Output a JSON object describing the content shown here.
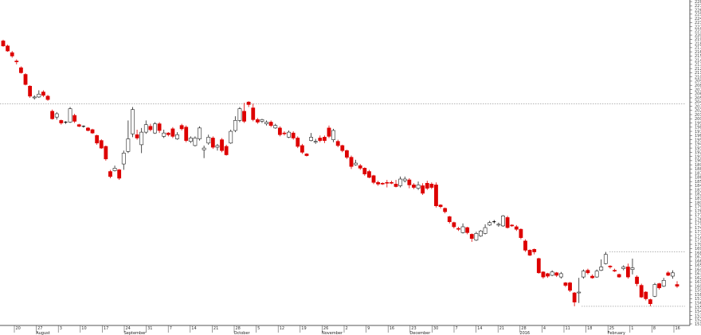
{
  "chart_data": {
    "type": "candlestick",
    "title": "",
    "xlabel": "",
    "ylabel": "",
    "ylim": [
      151,
      228
    ],
    "y_tick_step": 1,
    "grid": false,
    "legend": "none",
    "colors": {
      "bearish": "#dd0000",
      "bullish_fill": "#ffffff",
      "bullish_outline": "#222222",
      "neutral": "#000000",
      "axis": "#555555",
      "reference_line": "#888888"
    },
    "reference_lines": [
      {
        "kind": "horizontal",
        "value": 203.6
      },
      {
        "kind": "horizontal",
        "value": 168.2
      },
      {
        "kind": "horizontal",
        "value": 155.2
      }
    ],
    "date_ticks": [
      "20",
      "27",
      "3",
      "10",
      "17",
      "24",
      "31",
      "7",
      "14",
      "21",
      "28",
      "5",
      "12",
      "19",
      "26",
      "2",
      "9",
      "16",
      "23",
      "30",
      "7",
      "14",
      "21",
      "28",
      "4",
      "11",
      "18",
      "25",
      "1",
      "8",
      "16"
    ],
    "month_labels": [
      {
        "label": "August",
        "after_tick": 2
      },
      {
        "label": "September",
        "after_tick": 6
      },
      {
        "label": "October",
        "after_tick": 11
      },
      {
        "label": "November",
        "after_tick": 15
      },
      {
        "label": "December",
        "after_tick": 19
      },
      {
        "label": "2016",
        "after_tick": 24
      },
      {
        "label": "February",
        "after_tick": 28
      }
    ],
    "candles": [
      [
        218.6,
        217.4,
        218.9,
        217.2
      ],
      [
        217.4,
        216.2,
        217.7,
        216.0
      ],
      [
        215.8,
        215.0,
        216.2,
        214.6
      ],
      [
        213.8,
        213.6,
        214.2,
        213.0
      ],
      [
        212.2,
        211.0,
        212.5,
        210.8
      ],
      [
        210.6,
        208.2,
        210.9,
        208.0
      ],
      [
        207.8,
        205.4,
        208.0,
        205.0
      ],
      [
        205.0,
        205.2,
        205.6,
        204.6
      ],
      [
        205.2,
        205.9,
        206.8,
        205.0
      ],
      [
        206.4,
        205.6,
        206.8,
        205.2
      ],
      [
        205.4,
        204.6,
        205.7,
        204.3
      ],
      [
        201.8,
        200.0,
        202.2,
        199.8
      ],
      [
        200.4,
        201.2,
        201.6,
        199.8
      ],
      [
        199.6,
        199.0,
        199.8,
        198.6
      ],
      [
        199.2,
        199.1,
        199.4,
        198.8
      ],
      [
        199.2,
        202.4,
        202.8,
        199.0
      ],
      [
        200.8,
        199.4,
        201.2,
        199.0
      ],
      [
        198.6,
        198.2,
        198.8,
        198.0
      ],
      [
        198.2,
        198.1,
        198.4,
        197.9
      ],
      [
        197.8,
        197.2,
        198.0,
        197.0
      ],
      [
        197.4,
        196.6,
        197.6,
        196.4
      ],
      [
        196.0,
        194.2,
        196.2,
        193.8
      ],
      [
        194.8,
        193.0,
        195.1,
        192.8
      ],
      [
        193.4,
        190.4,
        193.6,
        190.0
      ],
      [
        187.4,
        186.2,
        187.8,
        185.8
      ],
      [
        187.6,
        188.2,
        188.8,
        187.4
      ],
      [
        187.8,
        185.8,
        188.0,
        185.4
      ],
      [
        189.2,
        191.8,
        192.4,
        187.8
      ],
      [
        192.2,
        195.2,
        199.6,
        191.8
      ],
      [
        196.4,
        202.2,
        202.8,
        195.6
      ],
      [
        196.2,
        195.4,
        197.4,
        195.0
      ],
      [
        193.8,
        196.8,
        197.8,
        191.8
      ],
      [
        196.8,
        198.6,
        199.6,
        196.4
      ],
      [
        198.2,
        197.4,
        198.8,
        197.0
      ],
      [
        196.6,
        198.8,
        199.2,
        196.4
      ],
      [
        198.8,
        197.2,
        199.2,
        196.6
      ],
      [
        195.8,
        196.6,
        197.4,
        195.4
      ],
      [
        196.6,
        196.2,
        196.8,
        195.8
      ],
      [
        197.6,
        195.8,
        198.0,
        195.4
      ],
      [
        195.2,
        196.2,
        196.8,
        195.0
      ],
      [
        198.4,
        197.6,
        198.8,
        197.2
      ],
      [
        198.0,
        194.8,
        198.4,
        194.4
      ],
      [
        194.6,
        195.4,
        195.8,
        194.2
      ],
      [
        193.6,
        195.4,
        195.8,
        193.4
      ],
      [
        195.2,
        197.8,
        198.2,
        194.8
      ],
      [
        192.6,
        193.0,
        193.6,
        190.6
      ],
      [
        194.2,
        195.6,
        196.2,
        193.8
      ],
      [
        195.4,
        193.2,
        195.8,
        192.8
      ],
      [
        193.2,
        193.6,
        194.0,
        192.4
      ],
      [
        195.0,
        192.4,
        195.4,
        192.0
      ],
      [
        193.4,
        191.4,
        193.8,
        191.2
      ],
      [
        194.2,
        197.0,
        197.4,
        194.0
      ],
      [
        197.2,
        199.6,
        200.6,
        196.8
      ],
      [
        199.6,
        202.4,
        202.8,
        199.2
      ],
      [
        201.8,
        199.4,
        203.8,
        199.0
      ],
      [
        204.0,
        203.4,
        204.2,
        202.8
      ],
      [
        202.6,
        199.8,
        203.6,
        199.4
      ],
      [
        199.8,
        199.2,
        200.2,
        198.8
      ],
      [
        199.4,
        199.8,
        200.0,
        199.0
      ],
      [
        198.8,
        199.2,
        199.6,
        198.4
      ],
      [
        199.2,
        198.4,
        199.6,
        198.0
      ],
      [
        197.8,
        198.4,
        198.8,
        197.6
      ],
      [
        197.8,
        196.2,
        198.2,
        195.8
      ],
      [
        196.6,
        196.4,
        197.0,
        196.0
      ],
      [
        195.6,
        196.8,
        197.2,
        195.4
      ],
      [
        196.6,
        195.4,
        197.0,
        195.0
      ],
      [
        195.4,
        193.4,
        195.8,
        193.0
      ],
      [
        193.6,
        192.0,
        194.0,
        191.6
      ],
      [
        191.6,
        191.2,
        191.8,
        191.0
      ],
      [
        194.8,
        195.6,
        196.6,
        194.6
      ],
      [
        194.4,
        194.6,
        195.2,
        194.0
      ],
      [
        195.4,
        194.8,
        196.0,
        194.4
      ],
      [
        195.6,
        194.8,
        196.0,
        194.2
      ],
      [
        197.8,
        195.8,
        198.4,
        195.4
      ],
      [
        195.0,
        197.2,
        197.6,
        194.4
      ],
      [
        194.6,
        193.6,
        195.0,
        193.2
      ],
      [
        193.6,
        192.4,
        193.8,
        192.0
      ],
      [
        192.4,
        190.8,
        192.6,
        190.4
      ],
      [
        190.8,
        188.6,
        191.2,
        188.0
      ],
      [
        189.0,
        189.4,
        190.2,
        188.8
      ],
      [
        188.8,
        188.2,
        189.2,
        187.8
      ],
      [
        188.2,
        186.8,
        188.4,
        186.4
      ],
      [
        187.4,
        186.0,
        187.8,
        185.8
      ],
      [
        186.4,
        184.8,
        186.6,
        184.4
      ],
      [
        184.8,
        184.4,
        185.2,
        184.0
      ],
      [
        184.6,
        184.4,
        184.8,
        184.2
      ],
      [
        184.8,
        184.6,
        185.4,
        183.6
      ],
      [
        184.8,
        184.6,
        185.2,
        184.4
      ],
      [
        184.4,
        183.8,
        185.4,
        183.6
      ],
      [
        184.0,
        185.6,
        186.2,
        183.6
      ],
      [
        185.2,
        185.6,
        186.2,
        184.8
      ],
      [
        185.4,
        184.2,
        185.8,
        183.4
      ],
      [
        184.2,
        183.6,
        184.6,
        183.2
      ],
      [
        183.4,
        184.2,
        185.0,
        183.0
      ],
      [
        184.0,
        182.2,
        184.6,
        181.8
      ],
      [
        184.6,
        183.4,
        185.2,
        183.0
      ],
      [
        184.4,
        183.6,
        184.8,
        183.2
      ],
      [
        184.2,
        179.2,
        184.8,
        178.8
      ],
      [
        179.4,
        179.0,
        179.6,
        178.6
      ],
      [
        178.6,
        177.8,
        178.8,
        177.4
      ],
      [
        176.6,
        175.4,
        176.8,
        175.0
      ],
      [
        175.2,
        174.2,
        175.4,
        173.8
      ],
      [
        173.8,
        173.6,
        174.2,
        173.2
      ],
      [
        172.8,
        174.2,
        175.0,
        172.6
      ],
      [
        174.0,
        172.8,
        174.2,
        172.4
      ],
      [
        172.4,
        171.4,
        172.6,
        170.6
      ],
      [
        171.0,
        172.6,
        173.0,
        170.8
      ],
      [
        172.0,
        173.2,
        173.4,
        171.8
      ],
      [
        172.6,
        174.0,
        174.8,
        172.4
      ],
      [
        174.6,
        175.2,
        175.6,
        174.4
      ],
      [
        175.4,
        175.4,
        175.8,
        175.0
      ],
      [
        174.6,
        174.8,
        175.2,
        174.2
      ],
      [
        174.4,
        176.8,
        177.0,
        174.2
      ],
      [
        176.4,
        174.0,
        176.8,
        173.8
      ],
      [
        174.6,
        174.4,
        174.8,
        174.2
      ],
      [
        174.2,
        173.6,
        174.6,
        173.2
      ],
      [
        173.6,
        171.6,
        173.8,
        171.2
      ],
      [
        170.8,
        168.6,
        171.2,
        168.2
      ],
      [
        168.6,
        167.4,
        168.8,
        167.2
      ],
      [
        168.8,
        168.2,
        169.0,
        167.6
      ],
      [
        166.6,
        163.2,
        166.8,
        163.0
      ],
      [
        163.4,
        162.2,
        163.6,
        161.8
      ],
      [
        163.0,
        162.4,
        163.2,
        162.0
      ],
      [
        162.6,
        163.4,
        163.8,
        162.4
      ],
      [
        163.2,
        162.6,
        163.4,
        162.2
      ],
      [
        162.2,
        163.0,
        163.4,
        161.8
      ],
      [
        160.8,
        160.2,
        161.0,
        159.8
      ],
      [
        160.8,
        159.0,
        161.0,
        158.6
      ],
      [
        158.4,
        156.2,
        158.6,
        155.2
      ],
      [
        158.4,
        158.6,
        162.0,
        156.0
      ],
      [
        162.2,
        163.6,
        164.0,
        161.8
      ],
      [
        163.8,
        163.2,
        164.2,
        162.8
      ],
      [
        162.4,
        162.0,
        162.8,
        161.8
      ],
      [
        162.2,
        163.6,
        164.0,
        162.0
      ],
      [
        163.8,
        164.6,
        166.4,
        163.6
      ],
      [
        165.4,
        167.6,
        168.2,
        165.2
      ],
      [
        164.8,
        164.6,
        165.0,
        164.2
      ],
      [
        163.8,
        163.6,
        164.2,
        163.4
      ],
      [
        162.8,
        162.2,
        163.0,
        162.0
      ],
      [
        164.2,
        164.6,
        165.0,
        163.8
      ],
      [
        164.6,
        162.2,
        165.4,
        161.8
      ],
      [
        164.0,
        164.4,
        166.6,
        162.8
      ],
      [
        162.2,
        160.6,
        162.6,
        160.0
      ],
      [
        160.2,
        157.4,
        160.6,
        157.2
      ],
      [
        158.6,
        157.0,
        158.8,
        156.6
      ],
      [
        156.8,
        155.8,
        157.0,
        155.2
      ],
      [
        157.6,
        160.4,
        160.8,
        157.4
      ],
      [
        160.6,
        159.6,
        160.8,
        159.2
      ],
      [
        160.0,
        161.4,
        162.0,
        159.8
      ],
      [
        163.2,
        162.6,
        163.6,
        162.4
      ],
      [
        162.4,
        163.2,
        163.8,
        161.8
      ],
      [
        160.4,
        160.0,
        161.2,
        159.6
      ]
    ]
  }
}
